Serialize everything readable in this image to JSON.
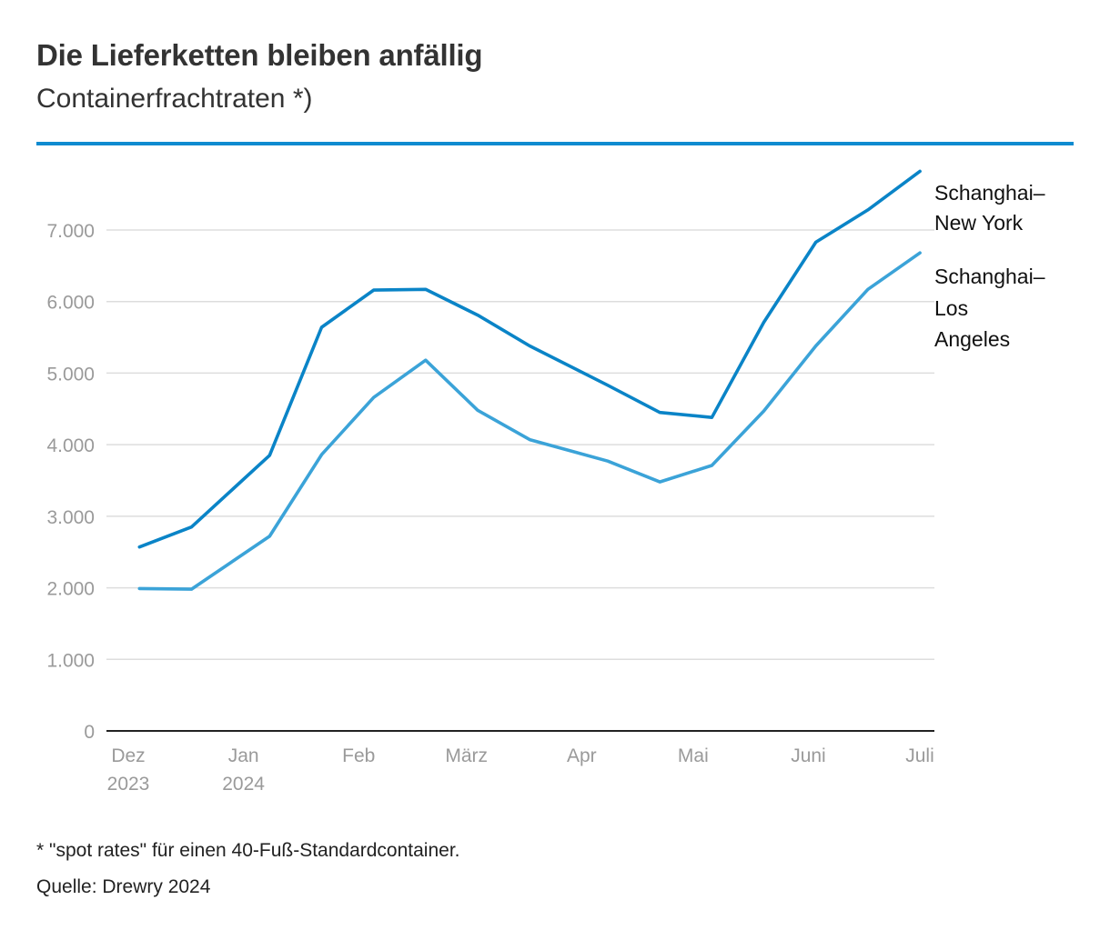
{
  "header": {
    "title": "Die Lieferketten bleiben anfällig",
    "subtitle": "Containerfrachtraten *)"
  },
  "footer": {
    "footnote": "* \"spot rates\" für einen 40-Fuß-Standardcontainer.",
    "source": "Quelle: Drewry 2024"
  },
  "colors": {
    "accent": "#0f8bd0",
    "series_ny": "#0a84c7",
    "series_la": "#3ba3d8",
    "grid": "#dddddd",
    "axis": "#222222",
    "tick_text": "#9a9a9a"
  },
  "chart_data": {
    "type": "line",
    "title": "Die Lieferketten bleiben anfällig",
    "subtitle": "Containerfrachtraten *)",
    "xlabel": "",
    "ylabel": "",
    "ylim": [
      0,
      7800
    ],
    "yticks": [
      0,
      1000,
      2000,
      3000,
      4000,
      5000,
      6000,
      7000
    ],
    "ytick_labels": [
      "0",
      "1.000",
      "2.000",
      "3.000",
      "4.000",
      "5.000",
      "6.000",
      "7.000"
    ],
    "xlim": [
      "2023-11-30",
      "2024-07-07"
    ],
    "xticks": [
      {
        "date": "2023-12-01",
        "lines": [
          "Dez",
          "2023"
        ]
      },
      {
        "date": "2024-01-01",
        "lines": [
          "Jan",
          "2024"
        ]
      },
      {
        "date": "2024-02-01",
        "lines": [
          "Feb"
        ]
      },
      {
        "date": "2024-03-01",
        "lines": [
          "März"
        ]
      },
      {
        "date": "2024-04-01",
        "lines": [
          "Apr"
        ]
      },
      {
        "date": "2024-05-01",
        "lines": [
          "Mai"
        ]
      },
      {
        "date": "2024-06-01",
        "lines": [
          "Juni"
        ]
      },
      {
        "date": "2024-07-01",
        "lines": [
          "Juli"
        ]
      }
    ],
    "grid": true,
    "legend": "direct labels at right",
    "series": [
      {
        "name": "Schanghai–New York",
        "label_lines": [
          "Schanghai–",
          "New York"
        ],
        "color": "#0a84c7",
        "points": [
          {
            "x": "2023-12-05",
            "y": 2570
          },
          {
            "x": "2023-12-19",
            "y": 2850
          },
          {
            "x": "2024-01-09",
            "y": 3850
          },
          {
            "x": "2024-01-23",
            "y": 5640
          },
          {
            "x": "2024-02-06",
            "y": 6160
          },
          {
            "x": "2024-02-20",
            "y": 6170
          },
          {
            "x": "2024-03-05",
            "y": 5810
          },
          {
            "x": "2024-03-19",
            "y": 5380
          },
          {
            "x": "2024-04-09",
            "y": 4830
          },
          {
            "x": "2024-04-23",
            "y": 4450
          },
          {
            "x": "2024-05-07",
            "y": 4380
          },
          {
            "x": "2024-05-21",
            "y": 5710
          },
          {
            "x": "2024-06-04",
            "y": 6830
          },
          {
            "x": "2024-06-18",
            "y": 7280
          },
          {
            "x": "2024-07-02",
            "y": 7820
          }
        ]
      },
      {
        "name": "Schanghai–Los Angeles",
        "label_lines": [
          "Schanghai–",
          "Los",
          "Angeles"
        ],
        "color": "#3ba3d8",
        "points": [
          {
            "x": "2023-12-05",
            "y": 1990
          },
          {
            "x": "2023-12-19",
            "y": 1980
          },
          {
            "x": "2024-01-09",
            "y": 2720
          },
          {
            "x": "2024-01-23",
            "y": 3860
          },
          {
            "x": "2024-02-06",
            "y": 4660
          },
          {
            "x": "2024-02-20",
            "y": 5180
          },
          {
            "x": "2024-03-05",
            "y": 4480
          },
          {
            "x": "2024-03-19",
            "y": 4070
          },
          {
            "x": "2024-04-09",
            "y": 3770
          },
          {
            "x": "2024-04-23",
            "y": 3480
          },
          {
            "x": "2024-05-07",
            "y": 3710
          },
          {
            "x": "2024-05-21",
            "y": 4470
          },
          {
            "x": "2024-06-04",
            "y": 5380
          },
          {
            "x": "2024-06-18",
            "y": 6170
          },
          {
            "x": "2024-07-02",
            "y": 6680
          }
        ]
      }
    ]
  }
}
